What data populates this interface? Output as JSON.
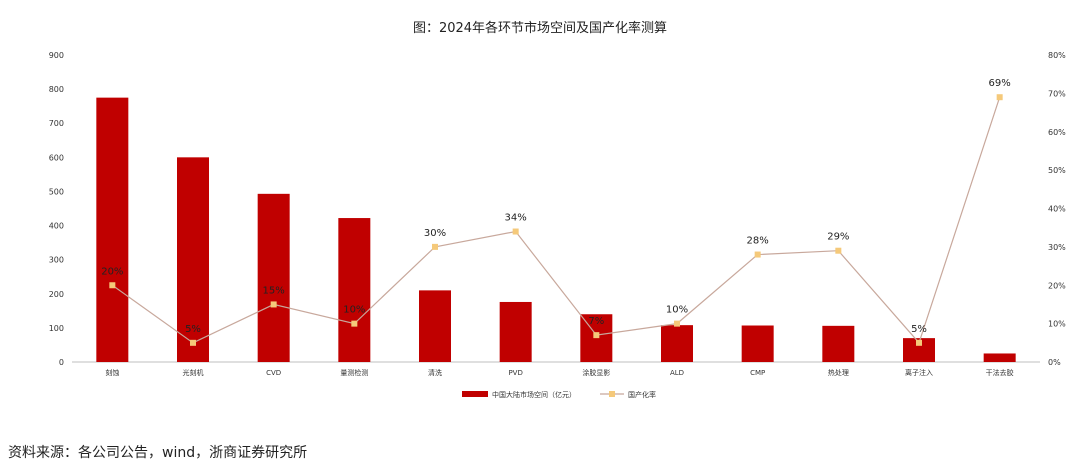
{
  "chart_data": {
    "type": "bar",
    "title": "图：2024年各环节市场空间及国产化率测算",
    "categories": [
      "刻蚀",
      "光刻机",
      "CVD",
      "量测检测",
      "清洗",
      "PVD",
      "涂胶显影",
      "ALD",
      "CMP",
      "热处理",
      "离子注入",
      "干法去胶"
    ],
    "series": [
      {
        "name": "中国大陆市场空间（亿元）",
        "type": "bar",
        "axis": "left",
        "color": "#C00000",
        "values": [
          775,
          600,
          493,
          422,
          210,
          176,
          140,
          108,
          107,
          106,
          70,
          25
        ]
      },
      {
        "name": "国产化率",
        "type": "line",
        "axis": "right",
        "color": "#C8A89C",
        "marker_color": "#F5C97A",
        "values": [
          20,
          5,
          15,
          10,
          30,
          34,
          7,
          10,
          28,
          29,
          5,
          69
        ],
        "labels": [
          "20%",
          "5%",
          "15%",
          "10%",
          "30%",
          "34%",
          "7%",
          "10%",
          "28%",
          "29%",
          "5%",
          "69%"
        ]
      }
    ],
    "y_left": {
      "min": 0,
      "max": 900,
      "step": 100,
      "ticks": [
        "0",
        "100",
        "200",
        "300",
        "400",
        "500",
        "600",
        "700",
        "800",
        "900"
      ]
    },
    "y_right": {
      "min": 0,
      "max": 80,
      "step": 10,
      "ticks": [
        "0%",
        "10%",
        "20%",
        "30%",
        "40%",
        "50%",
        "60%",
        "70%",
        "80%"
      ]
    },
    "grid": false,
    "legend_position": "bottom"
  },
  "source": "资料来源：各公司公告，wind，浙商证券研究所"
}
